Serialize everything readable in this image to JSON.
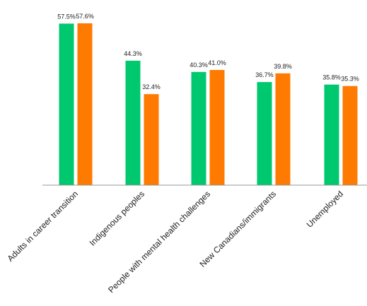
{
  "chart_data": {
    "type": "bar",
    "categories": [
      "Adults in career transition",
      "Indigenous peoples",
      "People with mental health challenges",
      "New Canadians/immigrants",
      "Unemployed"
    ],
    "series": [
      {
        "values": [
          57.5,
          44.3,
          40.3,
          36.7,
          35.8
        ],
        "labels": [
          "57.5%",
          "44.3%",
          "40.3%",
          "36.7%",
          "35.8%"
        ],
        "color": "#00c86f"
      },
      {
        "values": [
          57.6,
          32.4,
          41.0,
          39.8,
          35.3
        ],
        "labels": [
          "57.6%",
          "32.4%",
          "41.0%",
          "39.8%",
          "35.3%"
        ],
        "color": "#ff7a00"
      }
    ],
    "ylim": [
      0,
      57.6
    ],
    "grid": false,
    "axis_color": "#999999"
  }
}
